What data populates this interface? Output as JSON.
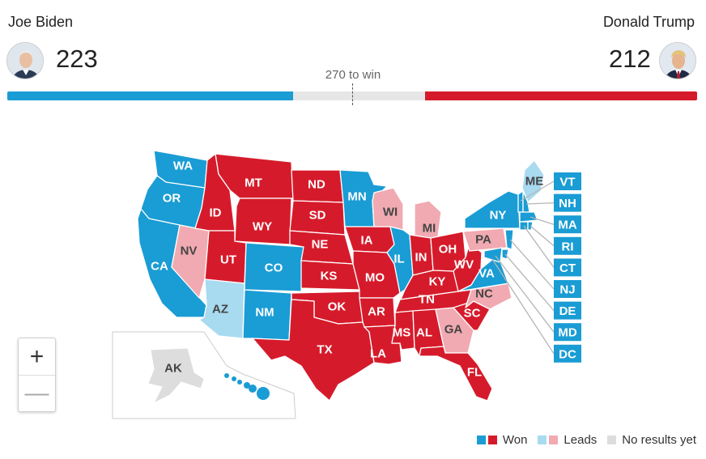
{
  "candidates": {
    "left": {
      "name": "Joe Biden",
      "electoral_votes": "223",
      "avatar": "portrait"
    },
    "right": {
      "name": "Donald Trump",
      "electoral_votes": "212",
      "avatar": "portrait"
    }
  },
  "threshold_label": "270 to win",
  "total_electoral_votes": 538,
  "colors": {
    "dem_won": "#1a9cd4",
    "dem_leads": "#a8daf0",
    "rep_won": "#d51b2b",
    "rep_leads": "#f1aab2",
    "no_results": "#dddddd"
  },
  "states": {
    "WA": "dem_won",
    "OR": "dem_won",
    "CA": "dem_won",
    "NV": "rep_leads",
    "ID": "rep_won",
    "MT": "rep_won",
    "WY": "rep_won",
    "UT": "rep_won",
    "AZ": "dem_leads",
    "CO": "dem_won",
    "NM": "dem_won",
    "ND": "rep_won",
    "SD": "rep_won",
    "NE": "rep_won",
    "KS": "rep_won",
    "OK": "rep_won",
    "TX": "rep_won",
    "MN": "dem_won",
    "IA": "rep_won",
    "MO": "rep_won",
    "AR": "rep_won",
    "LA": "rep_won",
    "WI": "rep_leads",
    "IL": "dem_won",
    "MI": "rep_leads",
    "IN": "rep_won",
    "OH": "rep_won",
    "KY": "rep_won",
    "TN": "rep_won",
    "MS": "rep_won",
    "AL": "rep_won",
    "GA": "rep_leads",
    "FL": "rep_won",
    "SC": "rep_won",
    "NC": "rep_leads",
    "WV": "rep_won",
    "VA": "dem_won",
    "PA": "rep_leads",
    "NY": "dem_won",
    "ME": "dem_leads",
    "AK": "no_results",
    "HI": "dem_won"
  },
  "northeast_labels": [
    "VT",
    "NH",
    "MA",
    "RI",
    "CT",
    "NJ",
    "DE",
    "MD",
    "DC"
  ],
  "zoom": {
    "in_label": "+",
    "out_label": "—"
  },
  "legend": {
    "won_label": "Won",
    "leads_label": "Leads",
    "no_results_label": "No results yet"
  }
}
